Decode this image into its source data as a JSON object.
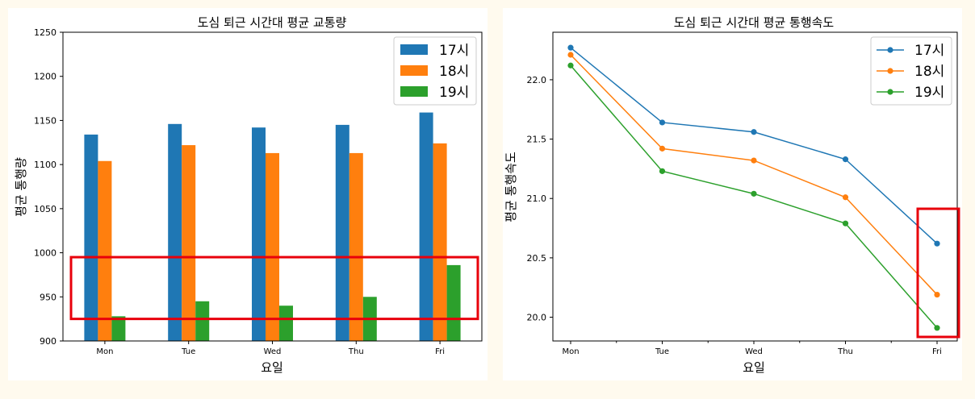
{
  "chart_data": [
    {
      "type": "bar",
      "title": "도심 퇴근 시간대 평균 교통량",
      "xlabel": "요일",
      "ylabel": "평균 통행량",
      "categories": [
        "Mon",
        "Tue",
        "Wed",
        "Thu",
        "Fri"
      ],
      "ylim": [
        900,
        1250
      ],
      "yticks": [
        900,
        950,
        1000,
        1050,
        1100,
        1150,
        1200,
        1250
      ],
      "series": [
        {
          "name": "17시",
          "color": "#1f77b4",
          "values": [
            1134,
            1146,
            1142,
            1145,
            1159
          ]
        },
        {
          "name": "18시",
          "color": "#ff7f0e",
          "values": [
            1104,
            1122,
            1113,
            1113,
            1124
          ]
        },
        {
          "name": "19시",
          "color": "#2ca02c",
          "values": [
            928,
            945,
            940,
            950,
            986
          ]
        }
      ],
      "legend": "top-right",
      "grid": false,
      "highlight": {
        "color": "#e8000b",
        "y_range": [
          925,
          995
        ]
      }
    },
    {
      "type": "line",
      "title": "도심 퇴근 시간대 평균 통행속도",
      "xlabel": "요일",
      "ylabel": "평균 통행속도",
      "x": [
        "Mon",
        "Tue",
        "Wed",
        "Thu",
        "Fri"
      ],
      "ylim": [
        19.8,
        22.4
      ],
      "yticks": [
        "20.0",
        "20.5",
        "21.0",
        "21.5",
        "22.0"
      ],
      "series": [
        {
          "name": "17시",
          "color": "#1f77b4",
          "values": [
            22.27,
            21.64,
            21.56,
            21.33,
            20.62
          ]
        },
        {
          "name": "18시",
          "color": "#ff7f0e",
          "values": [
            22.21,
            21.42,
            21.32,
            21.01,
            20.19
          ]
        },
        {
          "name": "19시",
          "color": "#2ca02c",
          "values": [
            22.12,
            21.23,
            21.04,
            20.79,
            19.91
          ]
        }
      ],
      "legend": "top-right",
      "grid": false,
      "highlight": {
        "color": "#e8000b",
        "category": "Fri"
      }
    }
  ]
}
